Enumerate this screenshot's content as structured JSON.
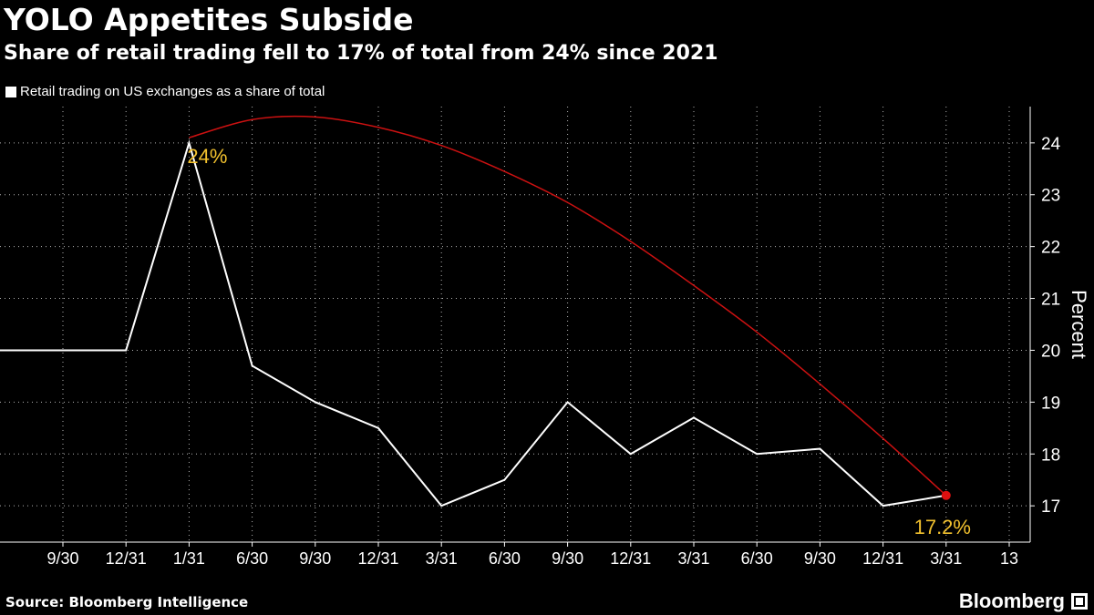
{
  "header": {
    "title": "YOLO Appetites Subside",
    "subtitle": "Share of retail trading fell to 17% of total from 24% since 2021"
  },
  "legend": {
    "label": "Retail trading on US exchanges as a share of total"
  },
  "footer": {
    "source": "Source: Bloomberg Intelligence",
    "brand": "Bloomberg",
    "brand_icon": "terminal-icon"
  },
  "colors": {
    "background": "#000000",
    "line": "#ffffff",
    "trend": "#cc1111",
    "trend_dot": "#e01010",
    "annotation": "#f2c12e",
    "axis": "#ffffff"
  },
  "chart_data": {
    "type": "line",
    "title": "YOLO Appetites Subside",
    "subtitle": "Share of retail trading fell to 17% of total from 24% since 2021",
    "xlabel": "",
    "ylabel": "Percent",
    "ylim": [
      16.3,
      24.7
    ],
    "yticks": [
      17,
      18,
      19,
      20,
      21,
      22,
      23,
      24
    ],
    "x_tick_labels": [
      "9/30",
      "12/31",
      "1/31",
      "6/30",
      "9/30",
      "12/31",
      "3/31",
      "6/30",
      "9/30",
      "12/31",
      "3/31",
      "6/30",
      "9/30",
      "12/31",
      "3/31",
      "13"
    ],
    "grid": true,
    "legend_position": "top-left",
    "series": [
      {
        "name": "Retail trading on US exchanges as a share of total",
        "points": [
          {
            "tick": -1,
            "value": 20.0
          },
          {
            "tick": 1,
            "value": 20.0
          },
          {
            "tick": 2,
            "value": 24.0
          },
          {
            "tick": 3,
            "value": 19.7
          },
          {
            "tick": 4,
            "value": 19.0
          },
          {
            "tick": 5,
            "value": 18.5
          },
          {
            "tick": 6,
            "value": 17.0
          },
          {
            "tick": 7,
            "value": 17.5
          },
          {
            "tick": 8,
            "value": 19.0
          },
          {
            "tick": 9,
            "value": 18.0
          },
          {
            "tick": 10,
            "value": 18.7
          },
          {
            "tick": 11,
            "value": 18.0
          },
          {
            "tick": 12,
            "value": 18.1
          },
          {
            "tick": 13,
            "value": 17.0
          },
          {
            "tick": 14,
            "value": 17.2
          }
        ]
      }
    ],
    "trend_line": {
      "name": "trend",
      "points": [
        {
          "tick": 2,
          "value": 24.1
        },
        {
          "tick": 3,
          "value": 24.45
        },
        {
          "tick": 4,
          "value": 24.5
        },
        {
          "tick": 5,
          "value": 24.3
        },
        {
          "tick": 6,
          "value": 23.95
        },
        {
          "tick": 7,
          "value": 23.45
        },
        {
          "tick": 8,
          "value": 22.85
        },
        {
          "tick": 9,
          "value": 22.1
        },
        {
          "tick": 10,
          "value": 21.25
        },
        {
          "tick": 11,
          "value": 20.35
        },
        {
          "tick": 12,
          "value": 19.35
        },
        {
          "tick": 13,
          "value": 18.3
        },
        {
          "tick": 14,
          "value": 17.2
        }
      ]
    },
    "annotations": [
      {
        "text": "24%",
        "tick": 2,
        "value": 24.0
      },
      {
        "text": "17.2%",
        "tick": 14,
        "value": 17.2
      }
    ]
  }
}
